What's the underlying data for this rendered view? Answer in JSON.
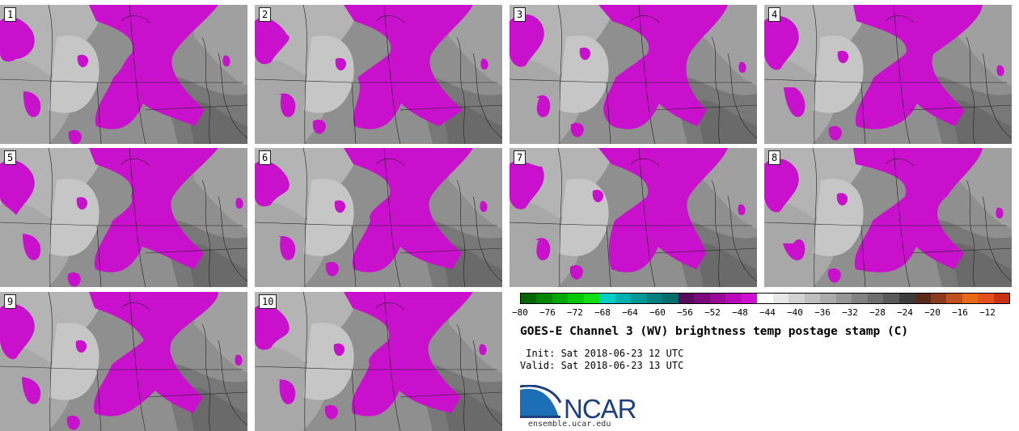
{
  "panels": [
    "1",
    "2",
    "3",
    "4",
    "5",
    "6",
    "7",
    "8",
    "9",
    "10"
  ],
  "colorbar": {
    "colors": [
      "#006400",
      "#008700",
      "#00a800",
      "#00c800",
      "#10e010",
      "#00d0c8",
      "#00b0b0",
      "#009898",
      "#008080",
      "#006c6c",
      "#5a0a5a",
      "#7a087a",
      "#9a089a",
      "#b808b8",
      "#d010d0",
      "#ffffff",
      "#e8e8e8",
      "#d2d2d2",
      "#bebebe",
      "#aaaaaa",
      "#969696",
      "#828282",
      "#6e6e6e",
      "#5a5a5a",
      "#3c3c3c",
      "#5a2a1a",
      "#8c3c1c",
      "#c0501e",
      "#e86a14",
      "#e4501a",
      "#c83214"
    ],
    "ticks": [
      "−80",
      "−76",
      "−72",
      "−68",
      "−64",
      "−60",
      "−56",
      "−52",
      "−48",
      "−44",
      "−40",
      "−36",
      "−32",
      "−28",
      "−24",
      "−20",
      "−16",
      "−12"
    ]
  },
  "title": "GOES-E Channel 3 (WV) brightness temp postage stamp (C)",
  "init_line": " Init: Sat 2018-06-23 12 UTC",
  "valid_line": "Valid: Sat 2018-06-23 13 UTC",
  "logo_text": "NCAR",
  "site": "ensemble.ucar.edu"
}
